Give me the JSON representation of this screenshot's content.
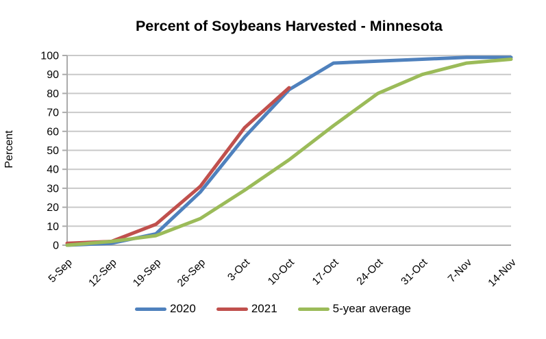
{
  "chart_data": {
    "type": "line",
    "title": "Percent of Soybeans Harvested - Minnesota",
    "xlabel": "",
    "ylabel": "Percent",
    "ylim": [
      0,
      100
    ],
    "ytick_step": 10,
    "grid": true,
    "legend_position": "bottom",
    "categories": [
      "5-Sep",
      "12-Sep",
      "19-Sep",
      "26-Sep",
      "3-Oct",
      "10-Oct",
      "17-Oct",
      "24-Oct",
      "31-Oct",
      "7-Nov",
      "14-Nov"
    ],
    "series": [
      {
        "name": "2020",
        "color": "#4F81BD",
        "values": [
          0,
          1,
          6,
          28,
          57,
          82,
          96,
          97,
          98,
          99,
          99
        ]
      },
      {
        "name": "2021",
        "color": "#C0504D",
        "values": [
          1,
          2,
          11,
          31,
          62,
          83
        ]
      },
      {
        "name": "5-year average",
        "color": "#9BBB59",
        "values": [
          0,
          2,
          5,
          14,
          29,
          45,
          63,
          80,
          90,
          96,
          98
        ]
      }
    ]
  },
  "colors": {
    "background": "#FFFFFF",
    "gridline": "#C9C9C9",
    "axis": "#ABABAB",
    "text": "#000000"
  }
}
